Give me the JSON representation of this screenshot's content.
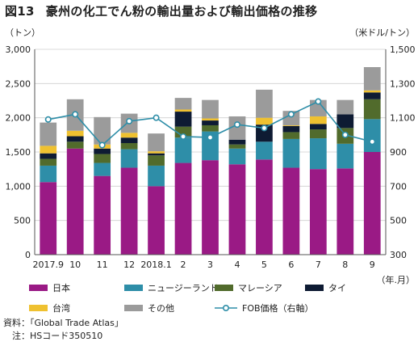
{
  "title": {
    "figure_number": "図13",
    "text": "豪州の化工でん粉の輸出量および輸出価格の推移"
  },
  "chart_data": {
    "type": "bar",
    "stacked": true,
    "left_unit": "（トン）",
    "right_unit": "（米ドル/トン）",
    "x_unit": "（年.月）",
    "categories": [
      "2017.9",
      "10",
      "11",
      "12",
      "2018.1",
      "2",
      "3",
      "4",
      "5",
      "6",
      "7",
      "8",
      "9"
    ],
    "ylim": [
      0,
      3000
    ],
    "y_ticks": [
      0,
      500,
      1000,
      1500,
      2000,
      2500,
      3000
    ],
    "y_tick_labels": [
      "0",
      "500",
      "1,000",
      "1,500",
      "2,000",
      "2,500",
      "3,000"
    ],
    "y2lim": [
      300,
      1500
    ],
    "y2_ticks": [
      300,
      500,
      700,
      900,
      1100,
      1300,
      1500
    ],
    "y2_tick_labels": [
      "300",
      "500",
      "700",
      "900",
      "1,100",
      "1,300",
      "1,500"
    ],
    "grid": true,
    "series": [
      {
        "name": "日本",
        "color": "#9a1a85",
        "values": [
          1060,
          1550,
          1150,
          1270,
          1000,
          1340,
          1380,
          1320,
          1390,
          1270,
          1250,
          1260,
          1500
        ]
      },
      {
        "name": "ニュージーランド",
        "color": "#2e8ea8",
        "values": [
          240,
          0,
          190,
          270,
          300,
          370,
          420,
          230,
          260,
          420,
          450,
          360,
          480
        ]
      },
      {
        "name": "マレーシア",
        "color": "#516b2c",
        "values": [
          100,
          100,
          130,
          90,
          150,
          160,
          90,
          60,
          0,
          100,
          130,
          230,
          290
        ]
      },
      {
        "name": "タイ",
        "color": "#0e1b33",
        "values": [
          80,
          80,
          80,
          80,
          30,
          220,
          70,
          70,
          250,
          90,
          80,
          200,
          100
        ]
      },
      {
        "name": "台湾",
        "color": "#efc130",
        "values": [
          110,
          80,
          60,
          70,
          30,
          30,
          30,
          0,
          100,
          10,
          110,
          0,
          30
        ]
      },
      {
        "name": "その他",
        "color": "#9b9b9b",
        "values": [
          340,
          460,
          400,
          280,
          260,
          170,
          270,
          340,
          410,
          210,
          240,
          210,
          340
        ]
      }
    ],
    "line_series": {
      "name": "FOB価格（右軸）",
      "axis": "right",
      "color": "#2e8ea8",
      "values": [
        1090,
        1120,
        940,
        1080,
        1100,
        990,
        985,
        1060,
        1040,
        1120,
        1195,
        1000,
        960
      ]
    },
    "legend_position": "bottom"
  },
  "source": {
    "label": "資料：",
    "text": "「Global Trade Atlas」",
    "note_label": "注：",
    "note_text": "HSコード350510"
  }
}
